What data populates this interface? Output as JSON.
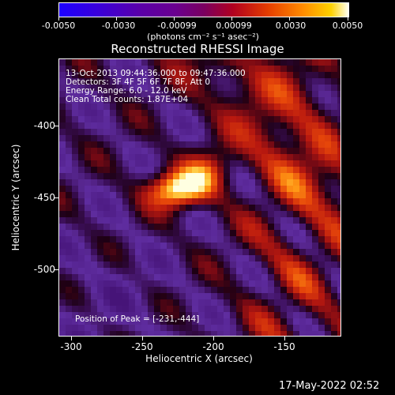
{
  "colorbar": {
    "tick_labels": [
      "-0.0050",
      "-0.0030",
      "-0.00099",
      "0.00099",
      "0.0030",
      "0.0050"
    ],
    "units": "(photons cm⁻² s⁻¹ asec⁻²)"
  },
  "title": "Reconstructed RHESSI Image",
  "info": {
    "line1": "13-Oct-2013 09:44:36.000 to 09:47:36.000",
    "line2": "Detectors: 3F 4F 5F 6F 7F 8F, Att 0",
    "line3": "Energy Range: 6.0 - 12.0 keV",
    "line4": "Clean     Total counts: 1.87E+04"
  },
  "peak": "Position of Peak = [-231,-444]",
  "x_axis": {
    "title": "Heliocentric X (arcsec)",
    "ticks": [
      "-300",
      "-250",
      "-200",
      "-150"
    ]
  },
  "y_axis": {
    "title": "Heliocentric Y (arcsec)",
    "ticks": [
      "-400",
      "-450",
      "-500"
    ]
  },
  "timestamp": "17-May-2022 02:52",
  "colors": {
    "background": "#000000",
    "low": "#5a2a9a",
    "mid": "#a0161e",
    "high": "#ffffe0"
  }
}
